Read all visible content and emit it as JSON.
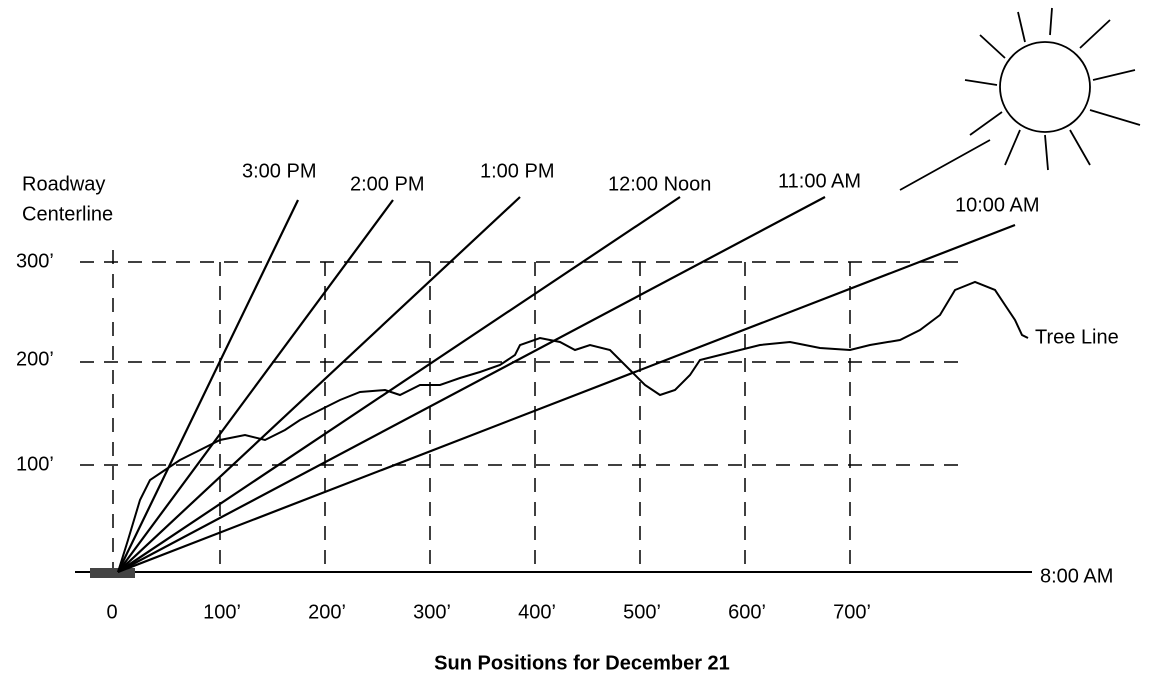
{
  "labels": {
    "roadway": [
      "Roadway",
      "Centerline"
    ],
    "times": [
      "3:00 PM",
      "2:00 PM",
      "1:00 PM",
      "12:00 Noon",
      "11:00 AM",
      "10:00 AM",
      "8:00 AM"
    ],
    "y_axis": [
      "300’",
      "200’",
      "100’"
    ],
    "x_axis": [
      "0",
      "100’",
      "200’",
      "300’",
      "400’",
      "500’",
      "600’",
      "700’"
    ],
    "tree_line": "Tree Line",
    "caption": "Sun Positions for December 21"
  }
}
